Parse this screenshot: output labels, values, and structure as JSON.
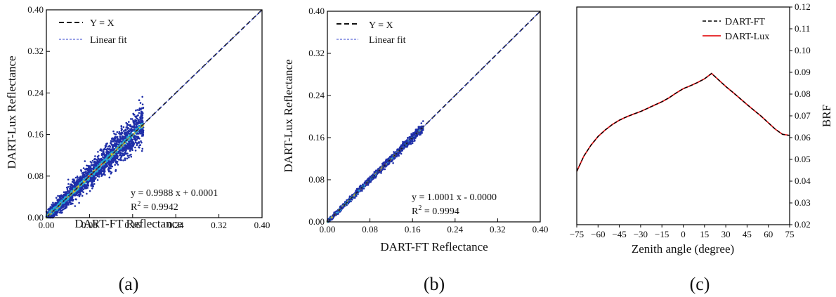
{
  "chart_data": [
    {
      "type": "scatter",
      "panel": "a",
      "caption": "(a)",
      "xlabel": "DART-FT Reflectance",
      "ylabel": "DART-Lux Reflectance",
      "xlim": [
        0,
        0.4
      ],
      "ylim": [
        0,
        0.4
      ],
      "xticks": [
        "0.00",
        "0.08",
        "0.16",
        "0.24",
        "0.32",
        "0.40"
      ],
      "yticks": [
        "0.00",
        "0.08",
        "0.16",
        "0.24",
        "0.32",
        "0.40"
      ],
      "legend": {
        "position": "top-left",
        "entries": [
          "Y = X",
          "Linear fit"
        ]
      },
      "fit": {
        "slope": 0.9988,
        "intercept": 0.0001
      },
      "annotation": {
        "equation": "y = 0.9988 x + 0.0001",
        "r2_prefix": "R",
        "r2_sup": "2",
        "r2_value": " = 0.9942"
      },
      "point_range": [
        0.0,
        0.18
      ],
      "scatter_spread": 0.012,
      "grid": false
    },
    {
      "type": "scatter",
      "panel": "b",
      "caption": "(b)",
      "xlabel": "DART-FT Reflectance",
      "ylabel": "DART-Lux Reflectance",
      "xlim": [
        0,
        0.4
      ],
      "ylim": [
        0,
        0.4
      ],
      "xticks": [
        "0.00",
        "0.08",
        "0.16",
        "0.24",
        "0.32",
        "0.40"
      ],
      "yticks": [
        "0.00",
        "0.08",
        "0.16",
        "0.24",
        "0.32",
        "0.40"
      ],
      "legend": {
        "position": "top-left",
        "entries": [
          "Y = X",
          "Linear fit"
        ]
      },
      "fit": {
        "slope": 1.0001,
        "intercept": 0.0
      },
      "annotation": {
        "equation": "y = 1.0001 x - 0.0000",
        "r2_prefix": "R",
        "r2_sup": "2",
        "r2_value": " = 0.9994"
      },
      "point_range": [
        0.0,
        0.18
      ],
      "scatter_spread": 0.003,
      "grid": false
    },
    {
      "type": "line",
      "panel": "c",
      "caption": "(c)",
      "xlabel": "Zenith angle (degree)",
      "ylabel": "BRF",
      "y_axis_side": "right",
      "xlim": [
        -75,
        75
      ],
      "ylim": [
        0.02,
        0.12
      ],
      "xticks": [
        "−75",
        "−60",
        "−45",
        "−30",
        "−15",
        "0",
        "15",
        "30",
        "45",
        "60",
        "75"
      ],
      "yticks": [
        "0.02",
        "0.03",
        "0.04",
        "0.05",
        "0.06",
        "0.07",
        "0.08",
        "0.09",
        "0.10",
        "0.11",
        "0.12"
      ],
      "legend": {
        "position": "top-right",
        "entries": [
          "DART-FT",
          "DART-Lux"
        ]
      },
      "x": [
        -75,
        -70,
        -65,
        -60,
        -55,
        -50,
        -45,
        -40,
        -35,
        -30,
        -25,
        -20,
        -15,
        -10,
        -5,
        0,
        5,
        10,
        15,
        20,
        25,
        30,
        35,
        40,
        45,
        50,
        55,
        60,
        65,
        70,
        75
      ],
      "series": [
        {
          "name": "DART-FT",
          "color": "#000000",
          "style": "dashed",
          "values": [
            0.0445,
            0.0515,
            0.0565,
            0.0605,
            0.0635,
            0.066,
            0.068,
            0.0695,
            0.0708,
            0.072,
            0.0735,
            0.075,
            0.0765,
            0.0783,
            0.0805,
            0.0825,
            0.0838,
            0.0853,
            0.087,
            0.0895,
            0.0865,
            0.0835,
            0.0808,
            0.078,
            0.0752,
            0.0725,
            0.0698,
            0.0668,
            0.0638,
            0.0615,
            0.061
          ]
        },
        {
          "name": "DART-Lux",
          "color": "#e41a1c",
          "style": "solid",
          "values": [
            0.0445,
            0.0515,
            0.0565,
            0.0605,
            0.0635,
            0.066,
            0.068,
            0.0695,
            0.0708,
            0.072,
            0.0735,
            0.075,
            0.0765,
            0.0783,
            0.0805,
            0.0825,
            0.0838,
            0.0853,
            0.087,
            0.0895,
            0.0865,
            0.0835,
            0.0808,
            0.078,
            0.0752,
            0.0725,
            0.0698,
            0.0668,
            0.0638,
            0.0615,
            0.061
          ]
        }
      ],
      "grid": false
    }
  ],
  "colors": {
    "identity_line": "#1a1a1a",
    "fit_line": "#3344cc",
    "scatter_low": "#1f2fa8",
    "scatter_mid": "#22a8d8",
    "scatter_high": "#d8c21a",
    "scatter_peak": "#e03020"
  }
}
